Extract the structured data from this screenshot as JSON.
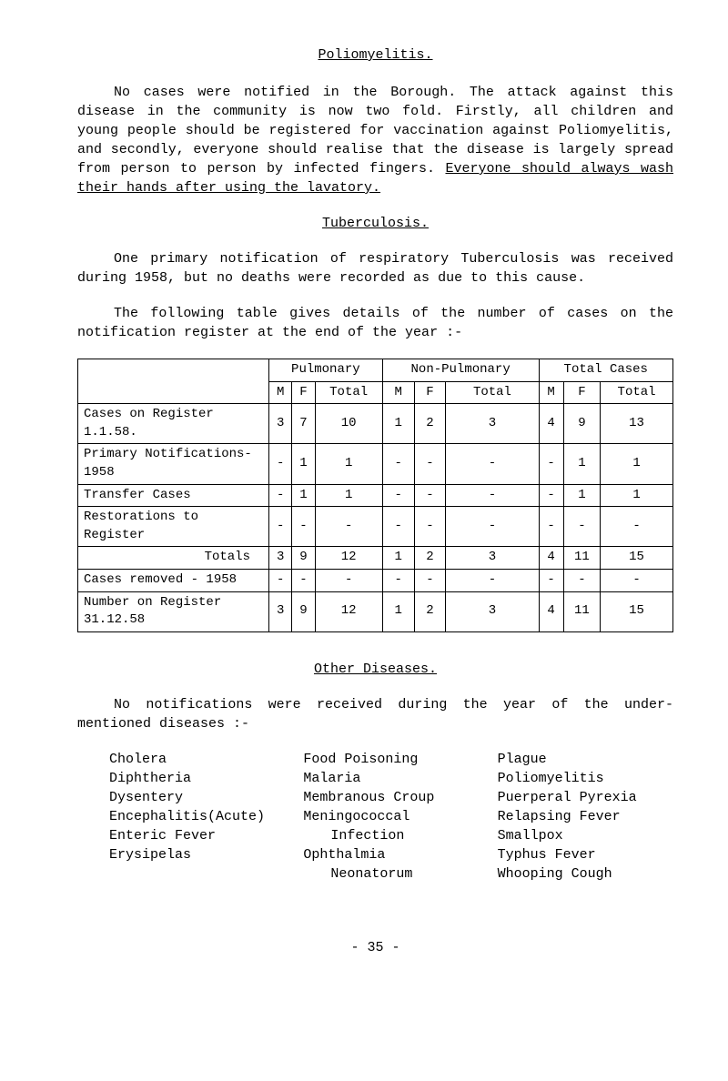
{
  "sections": {
    "polio": {
      "title": "Poliomyelitis.",
      "para_prefix": "No cases were notified in the Borough.  The attack against this disease in the community is now two fold.  Firstly, all children and young people should be registered for vaccination against Poliomyelitis, and secondly, everyone should realise that the disease is largely spread from person to person by infected fingers.  ",
      "para_underlined": "Everyone should always wash their hands after using the lavatory."
    },
    "tb": {
      "title": "Tuberculosis.",
      "para1": "One primary notification of respiratory Tuberculosis was received during 1958, but no deaths were recorded as due to this cause.",
      "para2": "The following table gives details of the number of cases on the notification register at the end of the year :-"
    },
    "other": {
      "title": "Other Diseases.",
      "para": "No notifications were received during the year of the under-mentioned diseases :-"
    }
  },
  "table": {
    "headers": {
      "pulmonary": "Pulmonary",
      "nonpulmonary": "Non-Pulmonary",
      "totalcases": "Total Cases",
      "m": "M",
      "f": "F",
      "total": "Total"
    },
    "rows": [
      {
        "label": "Cases on Register 1.1.58.",
        "pm": "3",
        "pf": "7",
        "pt": "10",
        "nm": "1",
        "nf": "2",
        "nt": "3",
        "tm": "4",
        "tf": "9",
        "tt": "13"
      },
      {
        "label": "Primary Notifications-1958",
        "pm": "-",
        "pf": "1",
        "pt": "1",
        "nm": "-",
        "nf": "-",
        "nt": "-",
        "tm": "-",
        "tf": "1",
        "tt": "1"
      },
      {
        "label": "Transfer Cases",
        "pm": "-",
        "pf": "1",
        "pt": "1",
        "nm": "-",
        "nf": "-",
        "nt": "-",
        "tm": "-",
        "tf": "1",
        "tt": "1"
      },
      {
        "label": "Restorations to Register",
        "pm": "-",
        "pf": "-",
        "pt": "-",
        "nm": "-",
        "nf": "-",
        "nt": "-",
        "tm": "-",
        "tf": "-",
        "tt": "-"
      }
    ],
    "totals_row": {
      "label": "Totals",
      "pm": "3",
      "pf": "9",
      "pt": "12",
      "nm": "1",
      "nf": "2",
      "nt": "3",
      "tm": "4",
      "tf": "11",
      "tt": "15"
    },
    "removed_row": {
      "label": "Cases removed - 1958",
      "pm": "-",
      "pf": "-",
      "pt": "-",
      "nm": "-",
      "nf": "-",
      "nt": "-",
      "tm": "-",
      "tf": "-",
      "tt": "-"
    },
    "final_row": {
      "label": "Number on Register 31.12.58",
      "pm": "3",
      "pf": "9",
      "pt": "12",
      "nm": "1",
      "nf": "2",
      "nt": "3",
      "tm": "4",
      "tf": "11",
      "tt": "15"
    }
  },
  "diseases": {
    "col1": [
      "Cholera",
      "Diphtheria",
      "Dysentery",
      "Encephalitis(Acute)",
      "Enteric Fever",
      "Erysipelas"
    ],
    "col2": [
      "Food Poisoning",
      "Malaria",
      "Membranous Croup",
      "Meningococcal",
      "    Infection",
      "Ophthalmia",
      "    Neonatorum"
    ],
    "col3": [
      "Plague",
      "Poliomyelitis",
      "Puerperal Pyrexia",
      "Relapsing Fever",
      "Smallpox",
      "Typhus Fever",
      "Whooping Cough"
    ]
  },
  "page_num": "- 35 -"
}
